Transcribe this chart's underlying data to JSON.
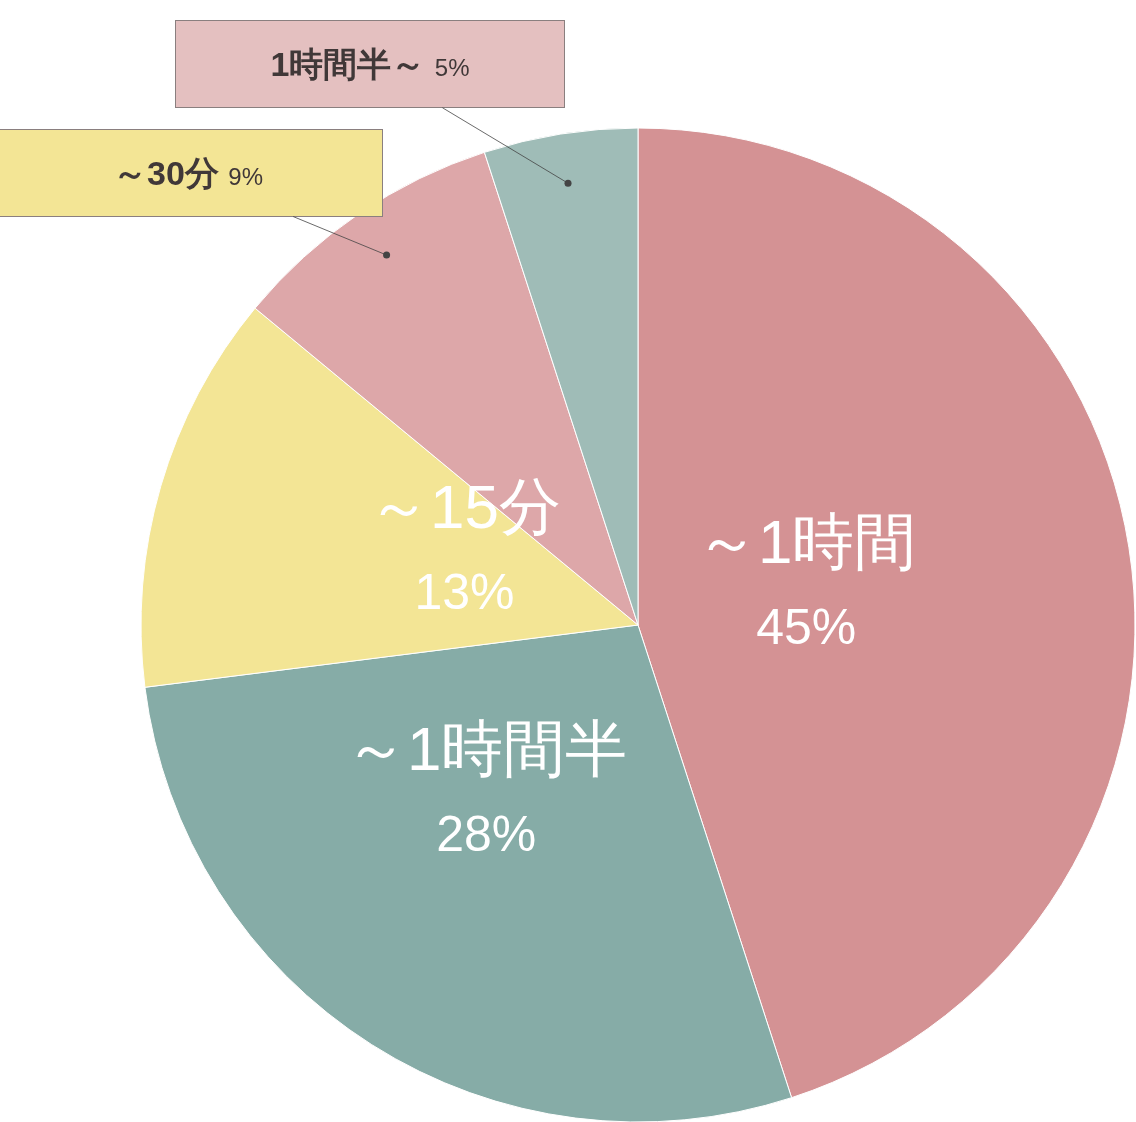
{
  "chart_data": {
    "type": "pie",
    "categories": [
      "～1時間",
      "～1時間半",
      "～15分",
      "～30分",
      "1時間半～"
    ],
    "values": [
      45,
      28,
      13,
      9,
      5
    ],
    "value_labels": [
      "45%",
      "28%",
      "13%",
      "9%",
      "5%"
    ],
    "colors": [
      "#d49294",
      "#86aca7",
      "#f3e595",
      "#dda7a9",
      "#9fbcb7"
    ]
  }
}
